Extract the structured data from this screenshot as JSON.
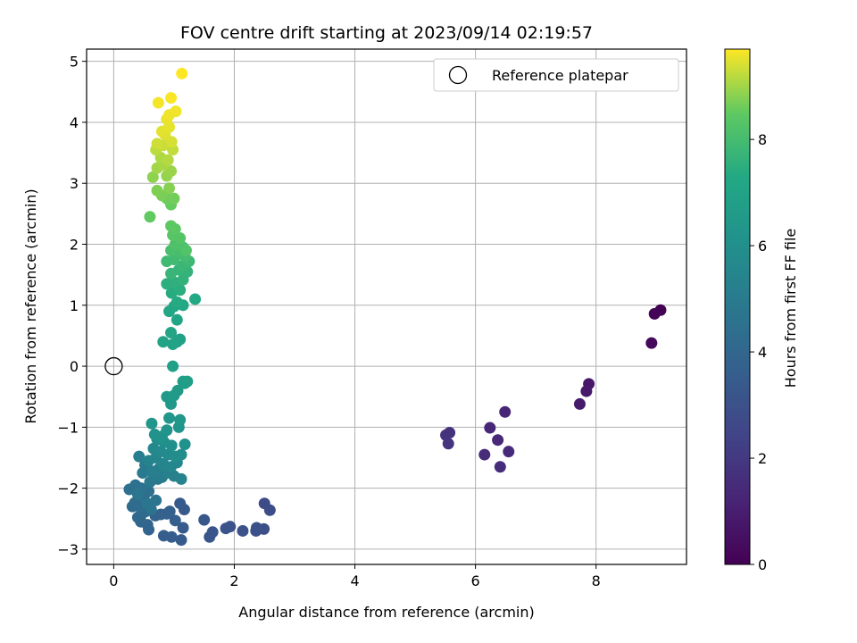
{
  "chart_data": {
    "type": "scatter",
    "title": "FOV centre drift starting at 2023/09/14 02:19:57",
    "xlabel": "Angular distance from reference (arcmin)",
    "ylabel": "Rotation from reference (arcmin)",
    "xlim": [
      -0.45,
      9.5
    ],
    "ylim": [
      -3.25,
      5.2
    ],
    "xticks": [
      0,
      2,
      4,
      6,
      8
    ],
    "yticks": [
      -3,
      -2,
      -1,
      0,
      1,
      2,
      3,
      4,
      5
    ],
    "tick_labels_x": [
      "0",
      "2",
      "4",
      "6",
      "8"
    ],
    "tick_labels_y": [
      "−3",
      "−2",
      "−1",
      "0",
      "1",
      "2",
      "3",
      "4",
      "5"
    ],
    "grid": true,
    "legend": {
      "position": "top-right",
      "entries": [
        {
          "label": "Reference platepar",
          "marker": "open-circle"
        }
      ]
    },
    "reference_point": {
      "x": 0,
      "y": 0
    },
    "colorbar": {
      "label": "Hours from first FF file",
      "colormap": "viridis",
      "range": [
        0,
        9.7
      ],
      "ticks": [
        0,
        2,
        4,
        6,
        8
      ],
      "tick_labels": [
        "0",
        "2",
        "4",
        "6",
        "8"
      ]
    },
    "points": [
      [
        9.07,
        0.92,
        0.05
      ],
      [
        8.97,
        0.86,
        0.15
      ],
      [
        8.92,
        0.38,
        0.25
      ],
      [
        7.88,
        -0.29,
        0.8
      ],
      [
        7.84,
        -0.41,
        0.85
      ],
      [
        7.73,
        -0.62,
        0.9
      ],
      [
        6.49,
        -0.75,
        1.3
      ],
      [
        6.24,
        -1.01,
        1.35
      ],
      [
        6.37,
        -1.21,
        1.4
      ],
      [
        6.55,
        -1.4,
        1.45
      ],
      [
        6.15,
        -1.45,
        1.5
      ],
      [
        6.41,
        -1.65,
        1.55
      ],
      [
        5.57,
        -1.09,
        1.7
      ],
      [
        5.51,
        -1.13,
        1.75
      ],
      [
        5.55,
        -1.27,
        1.8
      ],
      [
        2.5,
        -2.25,
        2.8
      ],
      [
        2.59,
        -2.36,
        2.85
      ],
      [
        2.49,
        -2.67,
        2.9
      ],
      [
        2.36,
        -2.7,
        2.95
      ],
      [
        2.37,
        -2.65,
        3.0
      ],
      [
        2.14,
        -2.7,
        3.05
      ],
      [
        1.93,
        -2.63,
        3.1
      ],
      [
        1.86,
        -2.66,
        3.15
      ],
      [
        1.64,
        -2.72,
        3.2
      ],
      [
        1.59,
        -2.8,
        3.25
      ],
      [
        1.5,
        -2.52,
        3.3
      ],
      [
        1.17,
        -2.35,
        3.35
      ],
      [
        1.1,
        -2.25,
        3.4
      ],
      [
        1.15,
        -2.65,
        3.45
      ],
      [
        1.12,
        -2.85,
        3.5
      ],
      [
        0.96,
        -2.8,
        3.55
      ],
      [
        0.83,
        -2.78,
        3.6
      ],
      [
        1.02,
        -2.53,
        3.65
      ],
      [
        0.93,
        -2.38,
        3.7
      ],
      [
        0.88,
        -2.42,
        3.75
      ],
      [
        0.78,
        -2.43,
        3.8
      ],
      [
        0.69,
        -2.45,
        3.85
      ],
      [
        0.58,
        -2.68,
        3.9
      ],
      [
        0.56,
        -2.6,
        3.95
      ],
      [
        0.45,
        -2.55,
        4.0
      ],
      [
        0.4,
        -2.48,
        4.05
      ],
      [
        0.47,
        -2.42,
        4.1
      ],
      [
        0.53,
        -2.38,
        4.15
      ],
      [
        0.31,
        -2.3,
        4.2
      ],
      [
        0.35,
        -2.24,
        4.25
      ],
      [
        0.42,
        -2.3,
        4.3
      ],
      [
        0.5,
        -2.15,
        4.35
      ],
      [
        0.58,
        -2.05,
        4.4
      ],
      [
        0.26,
        -2.02,
        4.45
      ],
      [
        0.36,
        -1.95,
        4.5
      ],
      [
        0.45,
        -2.0,
        4.55
      ],
      [
        0.62,
        -2.35,
        4.6
      ],
      [
        0.7,
        -2.2,
        4.65
      ],
      [
        0.55,
        -2.25,
        4.7
      ],
      [
        0.4,
        -2.1,
        4.75
      ],
      [
        0.6,
        -1.9,
        4.8
      ],
      [
        0.73,
        -1.85,
        4.85
      ],
      [
        0.48,
        -1.75,
        4.9
      ],
      [
        0.52,
        -1.62,
        4.95
      ],
      [
        0.66,
        -1.8,
        5.0
      ],
      [
        0.8,
        -1.82,
        5.05
      ],
      [
        0.42,
        -1.48,
        5.1
      ],
      [
        0.62,
        -1.72,
        5.15
      ],
      [
        0.75,
        -1.68,
        5.2
      ],
      [
        0.88,
        -1.75,
        5.25
      ],
      [
        1.0,
        -1.8,
        5.3
      ],
      [
        1.12,
        -1.85,
        5.35
      ],
      [
        0.58,
        -1.55,
        5.4
      ],
      [
        0.7,
        -1.5,
        5.45
      ],
      [
        0.82,
        -1.6,
        5.5
      ],
      [
        0.95,
        -1.65,
        5.55
      ],
      [
        1.05,
        -1.58,
        5.6
      ],
      [
        0.66,
        -1.35,
        5.65
      ],
      [
        0.78,
        -1.4,
        5.7
      ],
      [
        0.9,
        -1.45,
        5.75
      ],
      [
        1.02,
        -1.48,
        5.8
      ],
      [
        1.12,
        -1.45,
        5.85
      ],
      [
        0.72,
        -1.2,
        5.9
      ],
      [
        0.84,
        -1.25,
        5.95
      ],
      [
        0.96,
        -1.3,
        6.0
      ],
      [
        1.18,
        -1.28,
        6.05
      ],
      [
        0.68,
        -1.12,
        6.1
      ],
      [
        0.8,
        -1.15,
        6.15
      ],
      [
        0.88,
        -1.05,
        6.2
      ],
      [
        1.08,
        -1.0,
        6.25
      ],
      [
        0.63,
        -0.94,
        6.3
      ],
      [
        0.92,
        -0.85,
        6.35
      ],
      [
        1.1,
        -0.88,
        6.4
      ],
      [
        0.95,
        -0.62,
        6.45
      ],
      [
        0.88,
        -0.5,
        6.5
      ],
      [
        1.0,
        -0.48,
        6.55
      ],
      [
        1.06,
        -0.4,
        6.6
      ],
      [
        1.18,
        -0.28,
        6.65
      ],
      [
        1.15,
        -0.25,
        6.7
      ],
      [
        1.22,
        -0.25,
        6.75
      ],
      [
        0.98,
        0.0,
        6.8
      ],
      [
        1.05,
        0.4,
        6.85
      ],
      [
        1.1,
        0.44,
        6.9
      ],
      [
        0.82,
        0.4,
        6.95
      ],
      [
        0.98,
        0.36,
        7.0
      ],
      [
        0.95,
        0.55,
        7.05
      ],
      [
        1.05,
        0.76,
        7.1
      ],
      [
        0.92,
        0.9,
        7.15
      ],
      [
        1.0,
        0.98,
        7.2
      ],
      [
        1.15,
        1.0,
        7.25
      ],
      [
        1.35,
        1.1,
        7.3
      ],
      [
        1.05,
        1.05,
        7.35
      ],
      [
        0.96,
        1.2,
        7.4
      ],
      [
        1.1,
        1.25,
        7.45
      ],
      [
        0.88,
        1.35,
        7.5
      ],
      [
        1.0,
        1.38,
        7.55
      ],
      [
        1.15,
        1.42,
        7.6
      ],
      [
        1.22,
        1.55,
        7.65
      ],
      [
        1.08,
        1.58,
        7.7
      ],
      [
        0.95,
        1.52,
        7.75
      ],
      [
        1.15,
        1.65,
        7.8
      ],
      [
        1.25,
        1.72,
        7.85
      ],
      [
        0.88,
        1.72,
        7.9
      ],
      [
        1.0,
        1.75,
        7.95
      ],
      [
        1.18,
        1.8,
        8.0
      ],
      [
        1.08,
        1.88,
        8.05
      ],
      [
        0.95,
        1.9,
        8.1
      ],
      [
        1.15,
        1.95,
        8.15
      ],
      [
        1.02,
        2.0,
        8.2
      ],
      [
        1.2,
        1.9,
        8.25
      ],
      [
        1.1,
        2.1,
        8.3
      ],
      [
        0.98,
        2.15,
        8.35
      ],
      [
        1.02,
        2.25,
        8.4
      ],
      [
        0.95,
        2.3,
        8.45
      ],
      [
        0.6,
        2.45,
        8.5
      ],
      [
        0.95,
        2.65,
        8.55
      ],
      [
        0.88,
        2.75,
        8.6
      ],
      [
        1.0,
        2.75,
        8.65
      ],
      [
        0.8,
        2.8,
        8.7
      ],
      [
        0.72,
        2.88,
        8.75
      ],
      [
        0.92,
        2.92,
        8.8
      ],
      [
        0.65,
        3.1,
        8.85
      ],
      [
        0.88,
        3.12,
        8.9
      ],
      [
        0.95,
        3.2,
        8.95
      ],
      [
        0.72,
        3.25,
        9.0
      ],
      [
        0.82,
        3.3,
        9.05
      ],
      [
        0.78,
        3.42,
        9.1
      ],
      [
        0.9,
        3.38,
        9.15
      ],
      [
        0.7,
        3.55,
        9.2
      ],
      [
        0.98,
        3.55,
        9.25
      ],
      [
        0.82,
        3.62,
        9.3
      ],
      [
        0.72,
        3.65,
        9.35
      ],
      [
        0.96,
        3.68,
        9.4
      ],
      [
        0.85,
        3.8,
        9.45
      ],
      [
        0.8,
        3.85,
        9.5
      ],
      [
        0.92,
        3.92,
        9.52
      ],
      [
        0.88,
        4.05,
        9.55
      ],
      [
        0.92,
        4.12,
        9.58
      ],
      [
        1.03,
        4.18,
        9.6
      ],
      [
        0.74,
        4.32,
        9.63
      ],
      [
        0.95,
        4.4,
        9.66
      ],
      [
        1.13,
        4.8,
        9.7
      ]
    ]
  }
}
